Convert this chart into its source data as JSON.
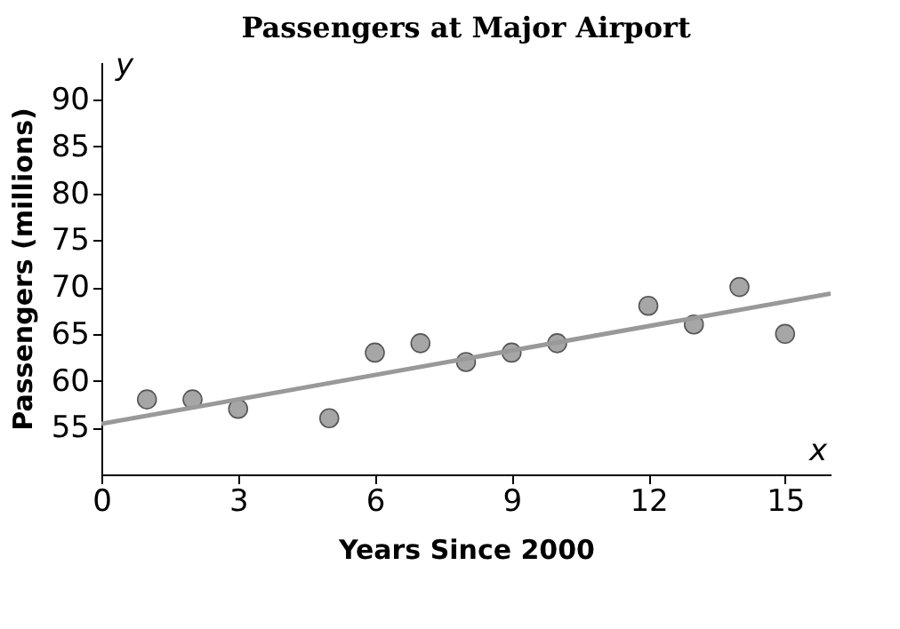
{
  "chart_data": {
    "type": "scatter",
    "title": "Passengers at Major Airport",
    "xlabel": "Years Since 2000",
    "ylabel": "Passengers (millions)",
    "xlim": [
      0,
      16
    ],
    "ylim": [
      50,
      94
    ],
    "xticks": [
      0,
      3,
      6,
      9,
      12,
      15
    ],
    "yticks": [
      55,
      60,
      65,
      70,
      75,
      80,
      85,
      90
    ],
    "grid": false,
    "marker": "circle",
    "annotations": [
      "y",
      "x"
    ],
    "series": [
      {
        "color": "#a6a6a6",
        "x": [
          1,
          2,
          3,
          5,
          6,
          7,
          8,
          9,
          10,
          12,
          13,
          14,
          15
        ],
        "values": [
          58,
          58,
          57,
          56,
          63,
          64,
          62,
          63,
          64,
          68,
          66,
          70,
          65
        ]
      },
      {
        "type": "line",
        "color": "#999999",
        "x": [
          0,
          16
        ],
        "values": [
          55.4,
          69.3
        ],
        "line_style": "solid",
        "marker": "none"
      }
    ]
  }
}
